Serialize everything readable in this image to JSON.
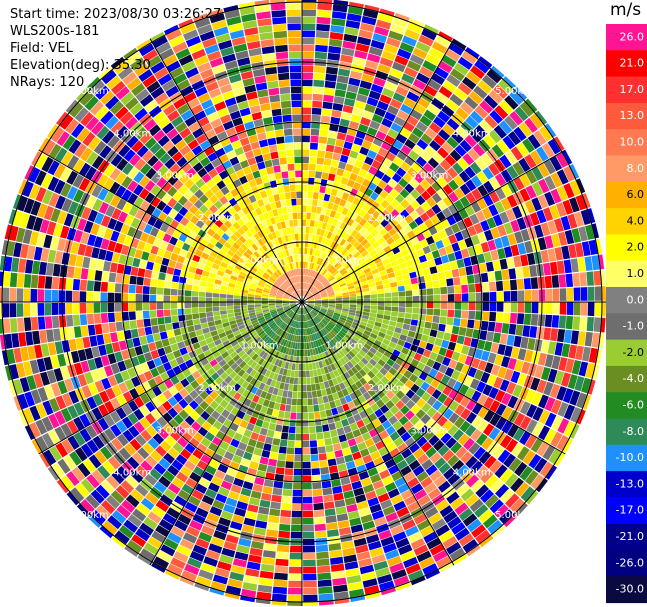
{
  "header": {
    "start_time": "Start time: 2023/08/30 03:26:27",
    "site": "WLS200s-181",
    "field": "Field: VEL",
    "elevation": "Elevation(deg): 35.30",
    "nrays": "NRays: 120"
  },
  "colorbar": {
    "unit": "m/s",
    "ticks": [
      "26.0",
      "21.0",
      "17.0",
      "13.0",
      "10.0",
      "8.0",
      "6.0",
      "4.0",
      "2.0",
      "1.0",
      "0.0",
      "-1.0",
      "-2.0",
      "-4.0",
      "-6.0",
      "-8.0",
      "-10.0",
      "-13.0",
      "-17.0",
      "-21.0",
      "-26.0",
      "-30.0"
    ],
    "colors": [
      "#ff1493",
      "#ff0000",
      "#ff3030",
      "#ff5a3c",
      "#ff7a50",
      "#ff9a66",
      "#ffb000",
      "#ffd200",
      "#ffff00",
      "#ffff66",
      "#808080",
      "#6e6e6e",
      "#9acd32",
      "#6b8e23",
      "#228b22",
      "#2e8b57",
      "#1e90ff",
      "#0000cd",
      "#0000ff",
      "#00008b",
      "#000080",
      "#0a0a40"
    ]
  },
  "chart_data": {
    "type": "ppi-radar",
    "field": "VEL",
    "units": "m/s",
    "nrays": 120,
    "range_rings_km": [
      1.0,
      2.0,
      3.0,
      4.0,
      5.0
    ],
    "ring_labels": [
      "1.00km",
      "2.00km",
      "3.00km",
      "4.00km",
      "5.00km"
    ],
    "spokes_deg": [
      0,
      30,
      60,
      90,
      120,
      150,
      180,
      210,
      240,
      270,
      300,
      330
    ],
    "inner_structure": [
      {
        "region": "north-center",
        "velocity_range": [
          1.0,
          4.0
        ]
      },
      {
        "region": "south-center",
        "velocity_range": [
          -8.0,
          -1.0
        ]
      }
    ],
    "outer_region": "noise (all velocity classes)"
  }
}
